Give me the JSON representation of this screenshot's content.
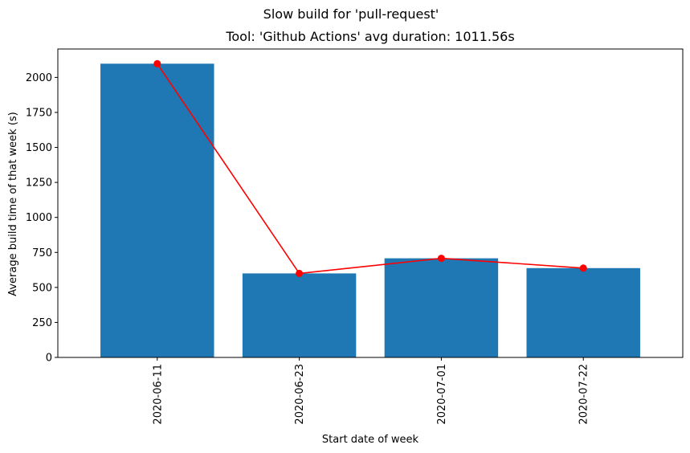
{
  "chart_data": {
    "type": "bar",
    "suptitle": "Slow build for 'pull-request'",
    "title": "Tool: 'Github Actions' avg duration: 1011.56s",
    "xlabel": "Start date of week",
    "ylabel": "Average build time of that week (s)",
    "categories": [
      "2020-06-11",
      "2020-06-23",
      "2020-07-01",
      "2020-07-22"
    ],
    "series": [
      {
        "type": "bar",
        "values": [
          2098,
          600,
          708,
          638
        ],
        "color": "#1f77b4"
      },
      {
        "type": "line",
        "values": [
          2098,
          600,
          708,
          638
        ],
        "color": "#ff0000",
        "marker": "circle"
      }
    ],
    "yticks": [
      0,
      250,
      500,
      750,
      1000,
      1250,
      1500,
      1750,
      2000
    ],
    "ylim": [
      0,
      2203
    ],
    "grid": false
  }
}
